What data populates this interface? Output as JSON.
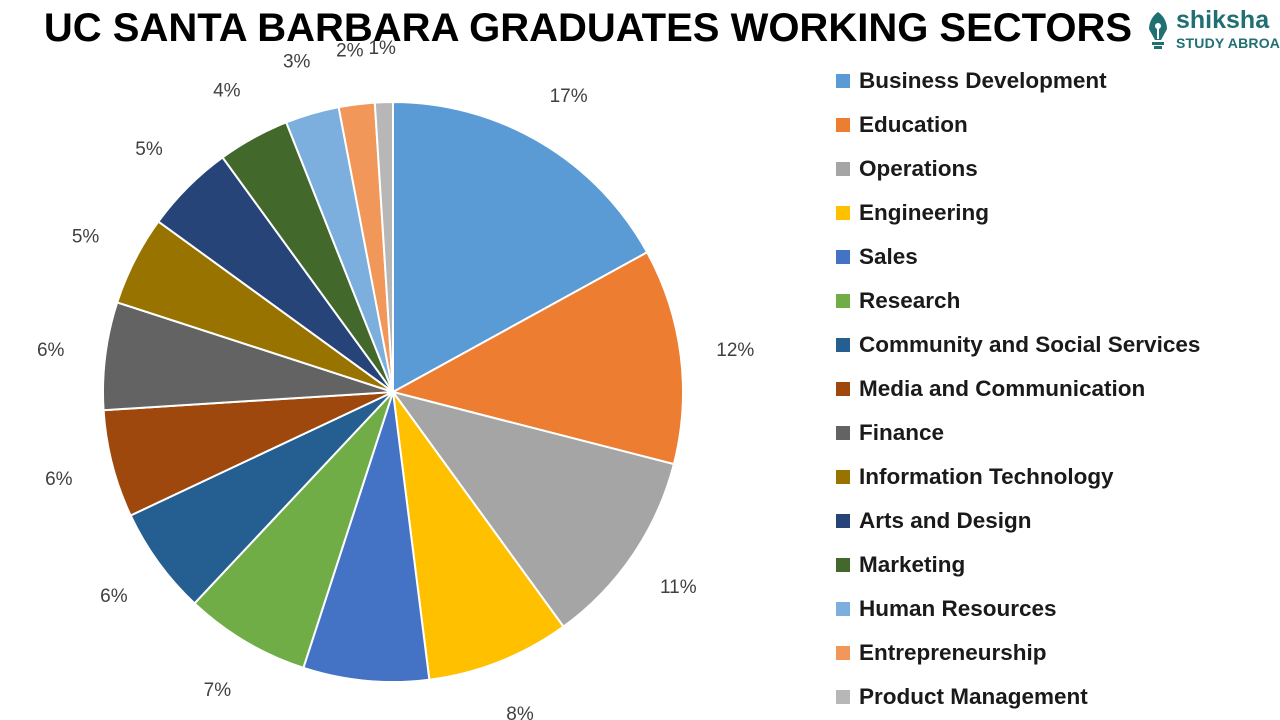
{
  "title": "UC SANTA BARBARA GRADUATES WORKING SECTORS",
  "brand": {
    "name": "shiksha",
    "tagline": "STUDY ABROAD",
    "color": "#1f6f73",
    "icon": "pen-nib-icon"
  },
  "chart_data": {
    "type": "pie",
    "title": "UC SANTA BARBARA GRADUATES WORKING SECTORS",
    "legend_position": "right",
    "start_angle": "top, clockwise",
    "slices": [
      {
        "label": "Business Development",
        "value": 17,
        "display": "17%",
        "color": "#5b9bd5"
      },
      {
        "label": "Education",
        "value": 12,
        "display": "12%",
        "color": "#ed7d31"
      },
      {
        "label": "Operations",
        "value": 11,
        "display": "11%",
        "color": "#a5a5a5"
      },
      {
        "label": "Engineering",
        "value": 8,
        "display": "8%",
        "color": "#ffc000"
      },
      {
        "label": "Sales",
        "value": 7,
        "display": "7%",
        "color": "#4472c4"
      },
      {
        "label": "Research",
        "value": 7,
        "display": "7%",
        "color": "#70ad47"
      },
      {
        "label": "Community and Social Services",
        "value": 6,
        "display": "6%",
        "color": "#255e91"
      },
      {
        "label": "Media and Communication",
        "value": 6,
        "display": "6%",
        "color": "#9e480e"
      },
      {
        "label": "Finance",
        "value": 6,
        "display": "6%",
        "color": "#636363"
      },
      {
        "label": "Information Technology",
        "value": 5,
        "display": "5%",
        "color": "#997300"
      },
      {
        "label": "Arts and Design",
        "value": 5,
        "display": "5%",
        "color": "#264478"
      },
      {
        "label": "Marketing",
        "value": 4,
        "display": "4%",
        "color": "#43682b"
      },
      {
        "label": "Human Resources",
        "value": 3,
        "display": "3%",
        "color": "#7cafdd"
      },
      {
        "label": "Entrepreneurship",
        "value": 2,
        "display": "2%",
        "color": "#f1975a"
      },
      {
        "label": "Product Management",
        "value": 1,
        "display": "1%",
        "color": "#b7b7b7"
      }
    ]
  }
}
